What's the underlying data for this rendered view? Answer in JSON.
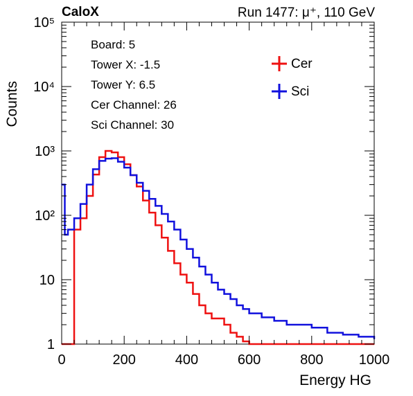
{
  "header": {
    "left": "CaloX",
    "right": "Run 1477:   μ⁺, 110 GeV"
  },
  "info_box": [
    "Board: 5",
    "Tower X: -1.5",
    "Tower Y: 6.5",
    "Cer Channel: 26",
    "Sci Channel: 30"
  ],
  "colors": {
    "cer": "#ee1111",
    "sci": "#1111dd",
    "axis": "#000000"
  },
  "chart_data": {
    "type": "line",
    "xlabel": "Energy HG",
    "ylabel": "Counts",
    "xlim": [
      0,
      1000
    ],
    "ylim": [
      1,
      100000
    ],
    "yscale": "log",
    "grid": false,
    "legend": "top-right",
    "x_ticks": [
      "0",
      "200",
      "400",
      "600",
      "800",
      "1000"
    ],
    "y_ticks": [
      "1",
      "10",
      "10²",
      "10³",
      "10⁴",
      "10⁵"
    ],
    "series": [
      {
        "name": "Cer",
        "x": [
          0,
          10,
          20,
          40,
          60,
          80,
          100,
          120,
          140,
          160,
          180,
          200,
          220,
          240,
          260,
          280,
          300,
          320,
          340,
          360,
          380,
          400,
          420,
          440,
          460,
          480,
          500,
          520,
          540,
          560,
          580,
          600,
          640,
          680,
          720,
          760,
          800,
          850,
          900,
          950,
          1000
        ],
        "values": [
          1,
          1,
          1,
          60,
          90,
          200,
          430,
          800,
          1000,
          950,
          800,
          620,
          420,
          280,
          170,
          110,
          70,
          45,
          28,
          18,
          12,
          9,
          6,
          4,
          3,
          2.5,
          2.5,
          2,
          1.5,
          1.3,
          1.1,
          1,
          1,
          1,
          1,
          1,
          1,
          1,
          1,
          1,
          1
        ]
      },
      {
        "name": "Sci",
        "x": [
          0,
          10,
          20,
          40,
          60,
          80,
          100,
          120,
          140,
          160,
          180,
          200,
          220,
          240,
          260,
          280,
          300,
          320,
          340,
          360,
          380,
          400,
          420,
          440,
          460,
          480,
          500,
          520,
          540,
          560,
          580,
          600,
          640,
          680,
          720,
          760,
          800,
          850,
          900,
          950,
          1000
        ],
        "values": [
          300,
          50,
          60,
          90,
          150,
          300,
          520,
          700,
          760,
          770,
          680,
          550,
          420,
          320,
          240,
          180,
          140,
          105,
          80,
          60,
          42,
          30,
          22,
          16,
          12,
          9,
          7,
          6,
          5,
          4,
          3.5,
          3,
          2.6,
          2.3,
          2,
          2,
          1.8,
          1.5,
          1.4,
          1.3,
          1.2
        ]
      }
    ]
  }
}
